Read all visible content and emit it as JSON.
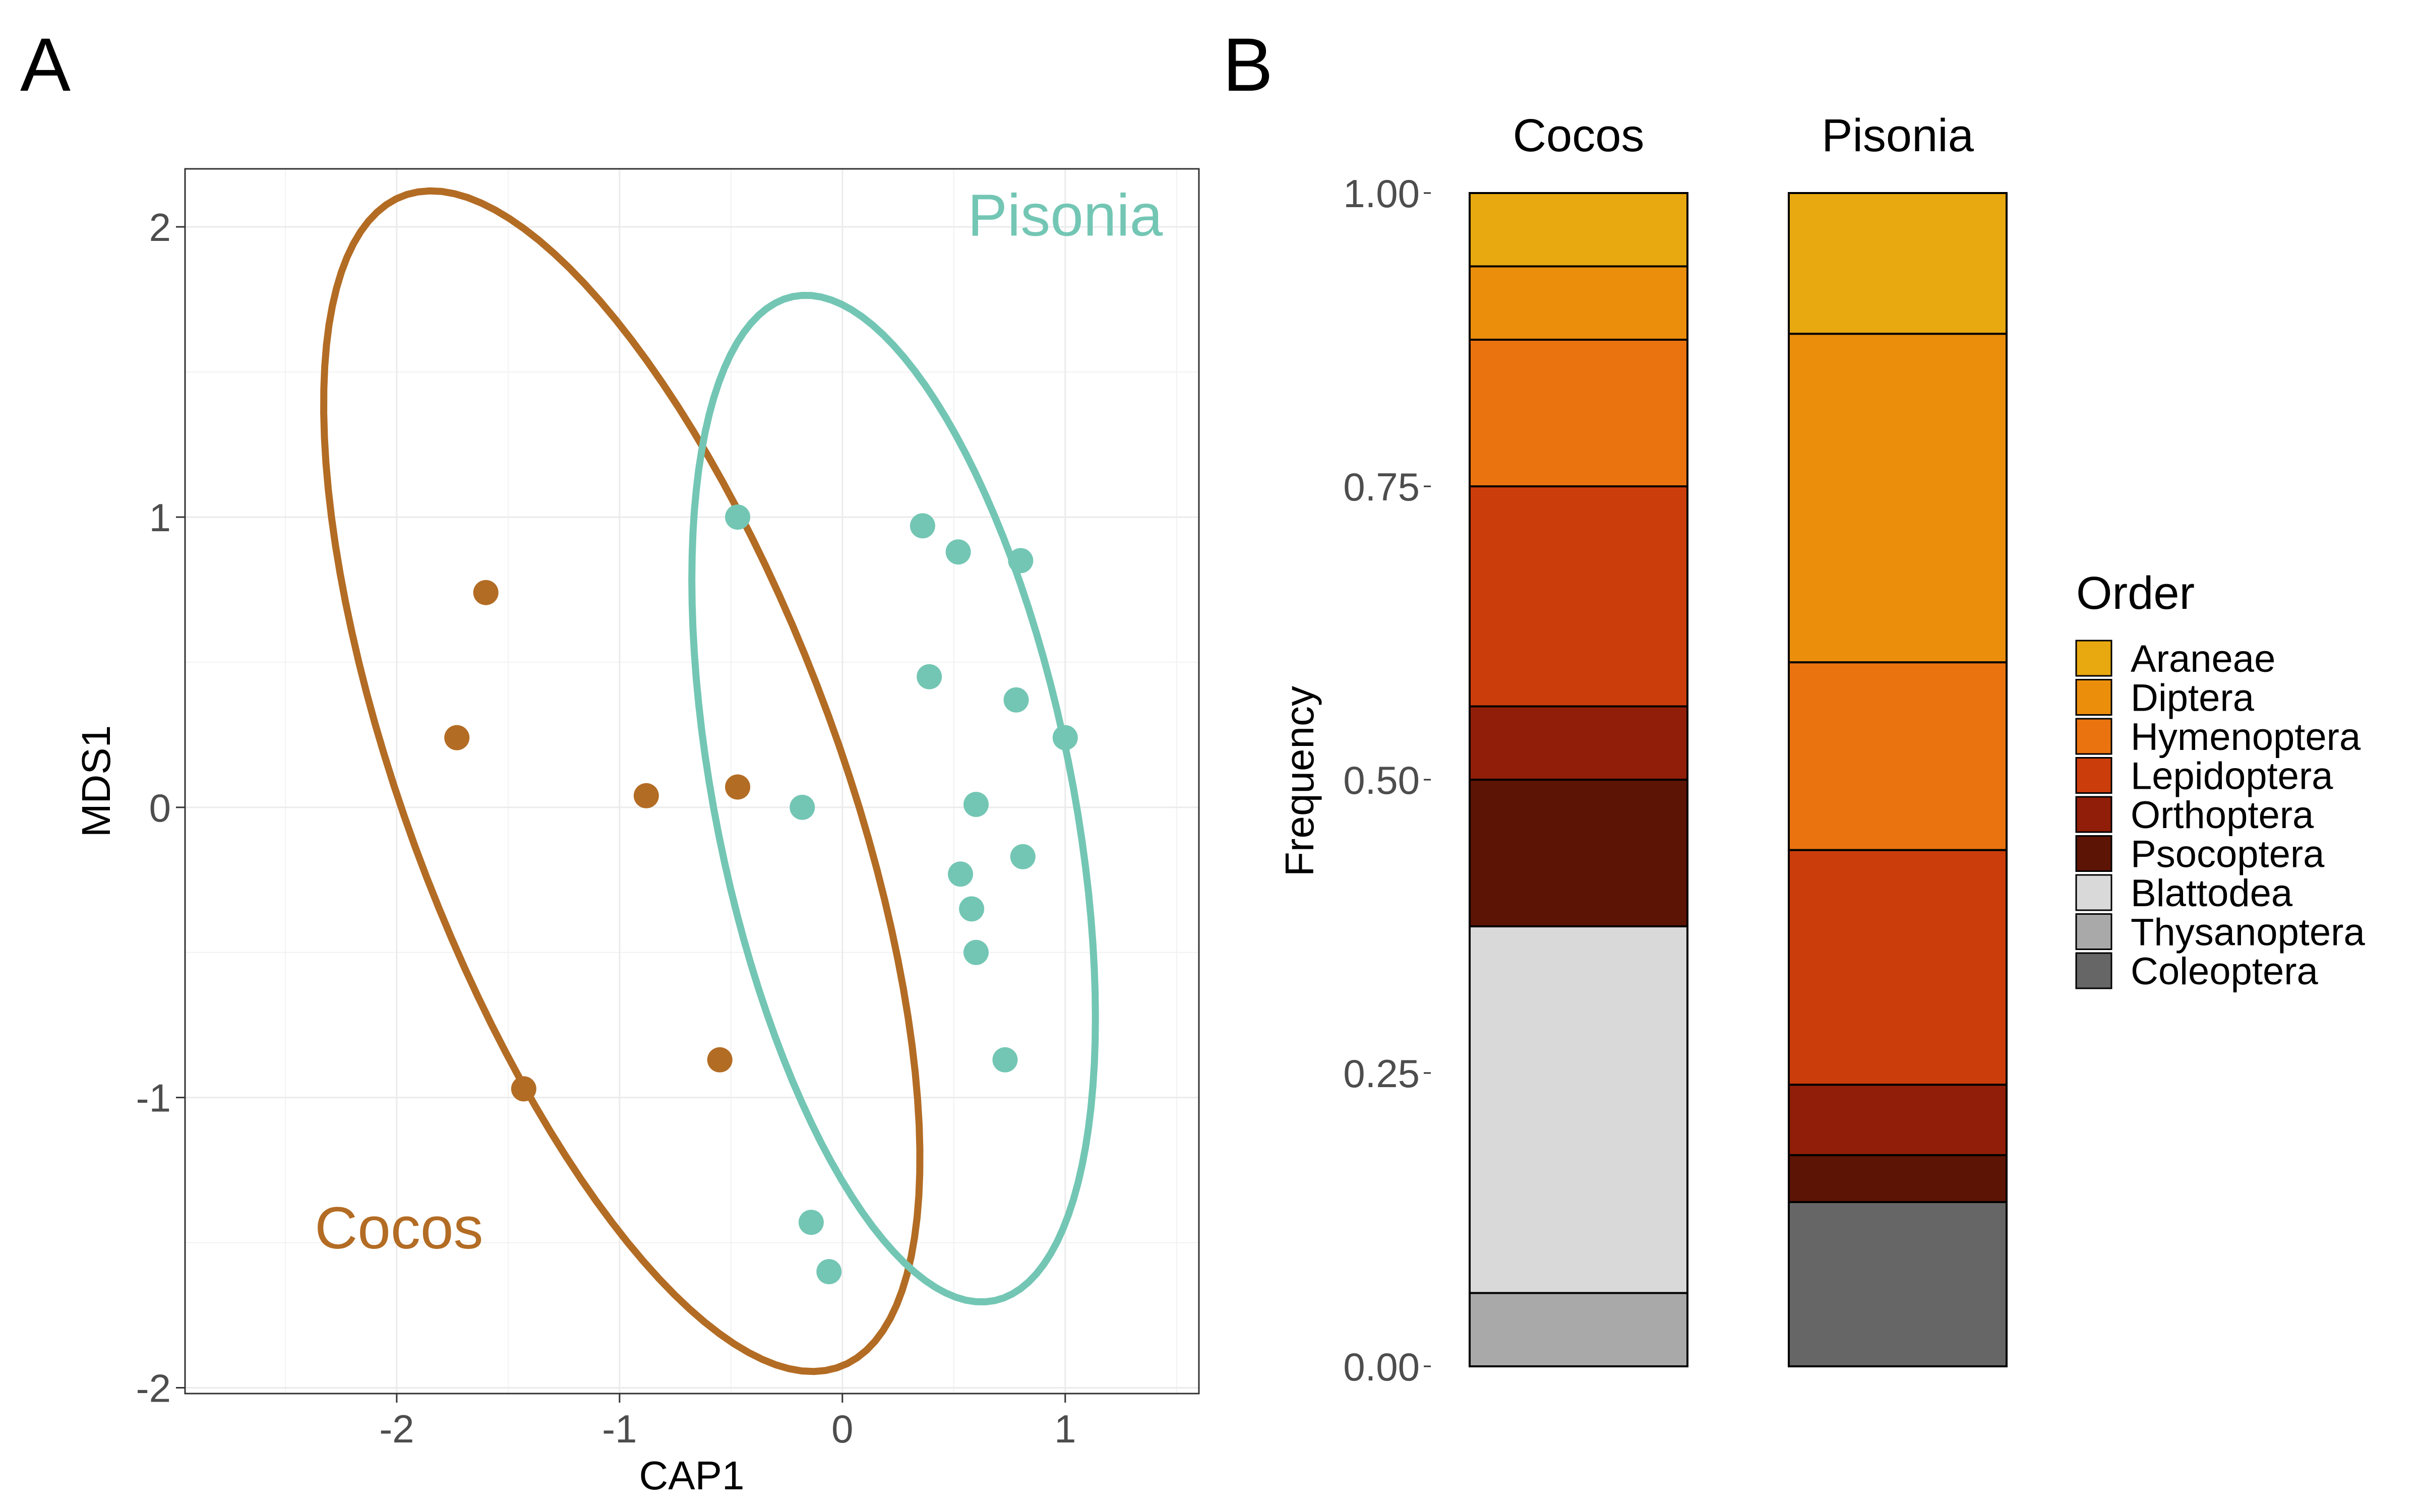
{
  "panels": {
    "a_letter": "A",
    "b_letter": "B"
  },
  "colors": {
    "Cocos": "#B36C24",
    "Pisonia": "#73C6B4"
  },
  "chart_data": [
    {
      "type": "scatter",
      "panel": "A",
      "title": "",
      "xlabel": "CAP1",
      "ylabel": "MDS1",
      "xlim": [
        -2.95,
        1.6
      ],
      "ylim": [
        -2.02,
        2.2
      ],
      "xticks": [
        -2,
        -1,
        0,
        1
      ],
      "xtick_labels": [
        "-2",
        "-1",
        "0",
        "1"
      ],
      "yticks": [
        -2,
        -1,
        0,
        1,
        2
      ],
      "ytick_labels": [
        "-2",
        "-1",
        "0",
        "1",
        "2"
      ],
      "grid": true,
      "series": [
        {
          "name": "Cocos",
          "color": "#B36C24",
          "points": [
            [
              -1.6,
              0.74
            ],
            [
              -1.73,
              0.24
            ],
            [
              -0.88,
              0.04
            ],
            [
              -0.47,
              0.07
            ],
            [
              -0.55,
              -0.87
            ],
            [
              -1.43,
              -0.97
            ]
          ],
          "ellipse": {
            "center": [
              -0.99,
              0.09
            ],
            "a": 2.25,
            "b": 0.93,
            "angle_deg": 118
          }
        },
        {
          "name": "Pisonia",
          "color": "#73C6B4",
          "points": [
            [
              -0.47,
              1.0
            ],
            [
              0.36,
              0.97
            ],
            [
              0.52,
              0.88
            ],
            [
              0.8,
              0.85
            ],
            [
              0.39,
              0.45
            ],
            [
              0.78,
              0.37
            ],
            [
              1.0,
              0.24
            ],
            [
              -0.18,
              0.0
            ],
            [
              0.6,
              0.01
            ],
            [
              0.81,
              -0.17
            ],
            [
              0.53,
              -0.23
            ],
            [
              0.58,
              -0.35
            ],
            [
              0.6,
              -0.5
            ],
            [
              0.73,
              -0.87
            ],
            [
              -0.14,
              -1.43
            ],
            [
              -0.06,
              -1.6
            ]
          ],
          "ellipse": {
            "center": [
              0.23,
              0.03
            ],
            "a": 1.79,
            "b": 0.79,
            "angle_deg": 106
          }
        }
      ],
      "annotations": [
        {
          "text": "Cocos",
          "x": -1.99,
          "y": -1.52,
          "series": "Cocos"
        },
        {
          "text": "Pisonia",
          "x": 1.0,
          "y": 1.97,
          "series": "Pisonia"
        }
      ]
    },
    {
      "type": "bar",
      "panel": "B",
      "stacked": true,
      "title": "",
      "xlabel": "",
      "ylabel": "Frequency",
      "ylim": [
        0,
        1
      ],
      "yticks": [
        0,
        0.25,
        0.5,
        0.75,
        1.0
      ],
      "ytick_labels": [
        "0.00",
        "0.25",
        "0.50",
        "0.75",
        "1.00"
      ],
      "categories": [
        "Cocos",
        "Pisonia"
      ],
      "legend_title": "Order",
      "legend_position": "right",
      "series": [
        {
          "name": "Araneae",
          "color": "#E8A80F",
          "values": [
            0.0625,
            0.12
          ]
        },
        {
          "name": "Diptera",
          "color": "#EB8E0C",
          "values": [
            0.0625,
            0.28
          ]
        },
        {
          "name": "Hymenoptera",
          "color": "#EA730F",
          "values": [
            0.125,
            0.16
          ]
        },
        {
          "name": "Lepidoptera",
          "color": "#CC3D0C",
          "values": [
            0.1875,
            0.2
          ]
        },
        {
          "name": "Orthoptera",
          "color": "#911E08",
          "values": [
            0.0625,
            0.06
          ]
        },
        {
          "name": "Psocoptera",
          "color": "#5C1404",
          "values": [
            0.125,
            0.04
          ]
        },
        {
          "name": "Blattodea",
          "color": "#D9D9D9",
          "values": [
            0.3125,
            0.0
          ]
        },
        {
          "name": "Thysanoptera",
          "color": "#A9A9A9",
          "values": [
            0.0625,
            0.0
          ]
        },
        {
          "name": "Coleoptera",
          "color": "#666666",
          "values": [
            0.0,
            0.14
          ]
        }
      ]
    }
  ]
}
